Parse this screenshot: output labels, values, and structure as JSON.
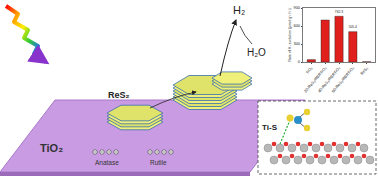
{
  "diagram": {
    "substrate": "TiO₂",
    "plates": "ReS₂",
    "phases": [
      "Anatase",
      "Rutile"
    ],
    "product": "H₂",
    "reactant": "H₂O",
    "inset_bond": "Ti-S"
  },
  "chart_data": {
    "type": "bar",
    "y_label": "Rate of H₂ evolution (μmol g⁻¹ h⁻¹)",
    "categories": [
      "TiO₂",
      "20-ReS₂/RBRTiO₂",
      "40-ReS₂/RBRTiO₂",
      "60-ReS₂/RBRTiO₂",
      "ReS₂"
    ],
    "values": [
      40,
      700,
      762.3,
      505.4,
      5
    ],
    "value_labels": [
      null,
      null,
      "762.3",
      "505.4",
      null
    ],
    "color": "#e0201c",
    "ylim": [
      0,
      900
    ],
    "yticks": [
      0,
      300,
      600,
      900
    ],
    "grid": false
  }
}
